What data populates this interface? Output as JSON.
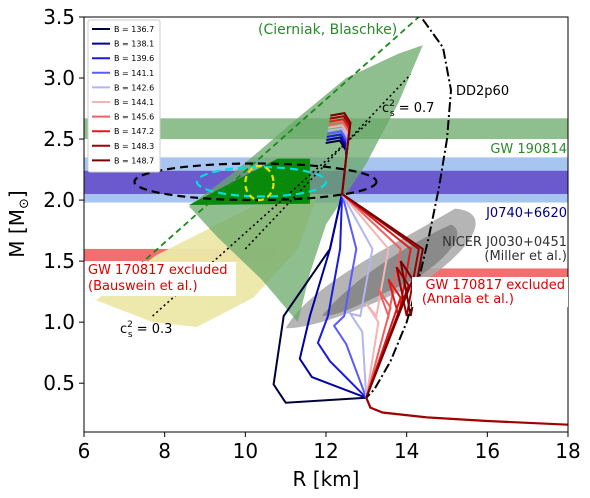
{
  "chart_data": {
    "type": "line",
    "xlabel": "R [km]",
    "ylabel": "M [M",
    "ylabel_sub": "⊙",
    "ylabel_close": "]",
    "xlim": [
      6,
      18
    ],
    "ylim": [
      0.1,
      3.5
    ],
    "xticks": [
      6,
      8,
      10,
      12,
      14,
      16,
      18
    ],
    "yticks": [
      0.5,
      1.0,
      1.5,
      2.0,
      2.5,
      3.0,
      3.5
    ],
    "grid": false,
    "legend": "top-left",
    "legend_entries": [
      {
        "label": "B = 136.7",
        "color": "#00003a"
      },
      {
        "label": "B = 138.1",
        "color": "#0000a0"
      },
      {
        "label": "B = 139.6",
        "color": "#1a1ae0"
      },
      {
        "label": "B = 141.1",
        "color": "#5a5aff"
      },
      {
        "label": "B = 142.6",
        "color": "#b4b4f0"
      },
      {
        "label": "B = 144.1",
        "color": "#f5b4b4"
      },
      {
        "label": "B = 145.6",
        "color": "#f06060"
      },
      {
        "label": "B = 147.2",
        "color": "#e01a1a"
      },
      {
        "label": "B = 148.3",
        "color": "#a00000"
      },
      {
        "label": "B = 148.7",
        "color": "#780000"
      }
    ],
    "annotations": {
      "cierniak": "(Cierniak, Blaschke)",
      "dd2p60": "DD2p60",
      "cs07_base": "c",
      "cs07_sup": "2",
      "cs07_sub": "s",
      "cs07_val": " = 0.7",
      "cs03_base": "c",
      "cs03_sup": "2",
      "cs03_sub": "s",
      "cs03_val": " = 0.3",
      "gw190814": "GW 190814",
      "j0740": "J0740+6620",
      "nicer1": "NICER J0030+0451",
      "nicer2": "(Miller et al.)",
      "gw170817_left1": "GW 170817 excluded",
      "gw170817_left2": "(Bauswein et al.)",
      "gw170817_right1": "GW 170817 excluded",
      "gw170817_right2": "(Annala et al.)"
    },
    "bands": [
      {
        "name": "GW 190814",
        "y": [
          2.5,
          2.67
        ],
        "color": "#8fbf8f"
      },
      {
        "name": "J0740+6620 outer",
        "y": [
          1.98,
          2.35
        ],
        "color": "#a8c4f0"
      },
      {
        "name": "J0740+6620 inner",
        "y": [
          2.05,
          2.24
        ],
        "color": "#6a5acd"
      }
    ],
    "dd2p60": [
      [
        14.4,
        3.48
      ],
      [
        14.9,
        3.25
      ],
      [
        15.1,
        2.9
      ],
      [
        15.0,
        2.5
      ],
      [
        14.8,
        2.1
      ],
      [
        14.55,
        1.7
      ],
      [
        14.3,
        1.35
      ],
      [
        14.0,
        1.0
      ],
      [
        13.6,
        0.68
      ],
      [
        13.2,
        0.45
      ],
      [
        13.0,
        0.38
      ]
    ],
    "crust": [
      [
        13.0,
        0.38
      ],
      [
        13.1,
        0.3
      ],
      [
        13.4,
        0.26
      ],
      [
        14.5,
        0.22
      ],
      [
        16.0,
        0.19
      ],
      [
        18.0,
        0.16
      ]
    ],
    "cs07_line": [
      [
        10.0,
        1.6
      ],
      [
        14.1,
        3.03
      ]
    ],
    "cs03_line": [
      [
        7.7,
        1.05
      ],
      [
        13.1,
        2.65
      ]
    ],
    "causal_line": [
      [
        6.8,
        1.3
      ],
      [
        14.3,
        3.5
      ]
    ],
    "mr_curves": [
      {
        "name": "B = 136.7",
        "color": "#00003a",
        "rmin": 10.65,
        "mmin": 0.34
      },
      {
        "name": "B = 138.1",
        "color": "#0000a0",
        "rmin": 11.3,
        "mmin": 0.55
      },
      {
        "name": "B = 139.6",
        "color": "#1a1ae0",
        "rmin": 11.75,
        "mmin": 0.68
      },
      {
        "name": "B = 141.1",
        "color": "#5a5aff",
        "rmin": 12.15,
        "mmin": 0.82
      },
      {
        "name": "B = 142.6",
        "color": "#b4b4f0",
        "rmin": 12.55,
        "mmin": 0.92
      },
      {
        "name": "B = 144.1",
        "color": "#f5b4b4",
        "rmin": 12.95,
        "mmin": 1.0
      },
      {
        "name": "B = 145.6",
        "color": "#f06060",
        "rmin": 13.25,
        "mmin": 1.12
      },
      {
        "name": "B = 147.2",
        "color": "#e01a1a",
        "rmin": 13.5,
        "mmin": 1.2
      },
      {
        "name": "B = 148.3",
        "color": "#a00000",
        "rmin": 13.7,
        "mmin": 1.3
      },
      {
        "name": "B = 148.7",
        "color": "#780000",
        "rmin": 13.8,
        "mmin": 1.35
      }
    ]
  }
}
